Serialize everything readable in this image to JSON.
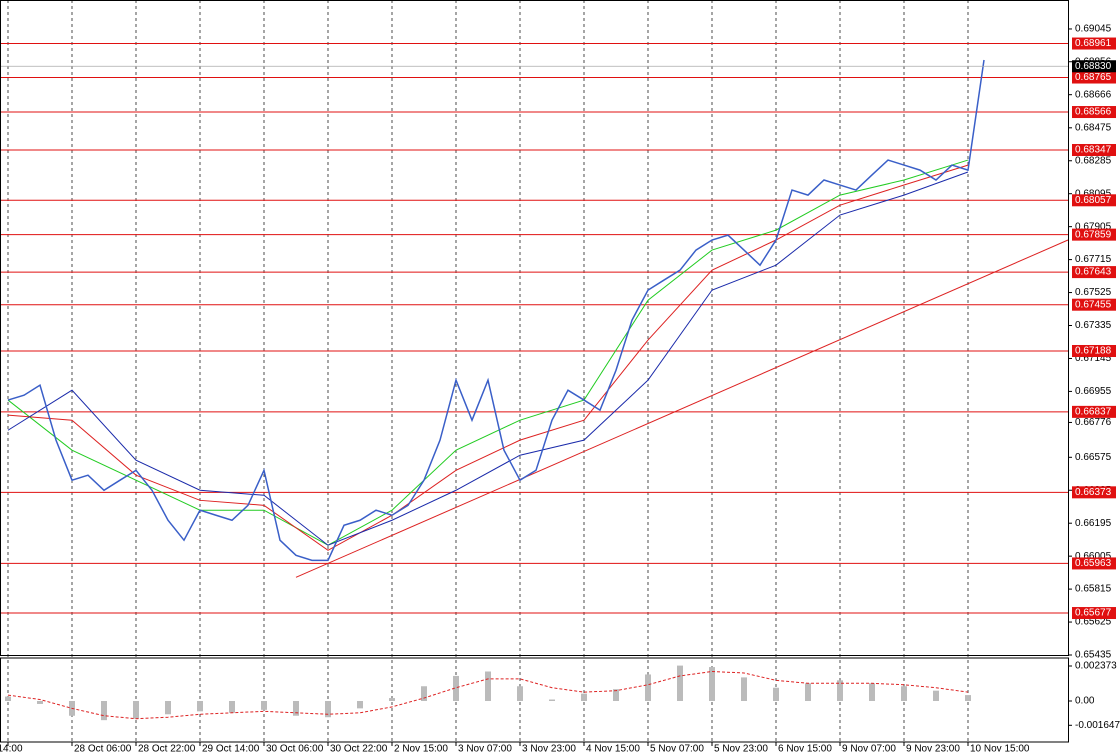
{
  "chart_data": {
    "type": "ohlc-line",
    "xlim": [
      -2,
      265
    ],
    "xticks": [
      {
        "value": 0,
        "label": "14:00"
      },
      {
        "value": 16,
        "label": "28 Oct 06:00"
      },
      {
        "value": 32,
        "label": "28 Oct 22:00"
      },
      {
        "value": 48,
        "label": "29 Oct 14:00"
      },
      {
        "value": 64,
        "label": "30 Oct 06:00"
      },
      {
        "value": 80,
        "label": "30 Oct 22:00"
      },
      {
        "value": 96,
        "label": "2 Nov 15:00"
      },
      {
        "value": 112,
        "label": "3 Nov 07:00"
      },
      {
        "value": 128,
        "label": "3 Nov 23:00"
      },
      {
        "value": 144,
        "label": "4 Nov 15:00"
      },
      {
        "value": 160,
        "label": "5 Nov 07:00"
      },
      {
        "value": 176,
        "label": "5 Nov 23:00"
      },
      {
        "value": 192,
        "label": "6 Nov 15:00"
      },
      {
        "value": 208,
        "label": "9 Nov 07:00"
      },
      {
        "value": 224,
        "label": "9 Nov 23:00"
      },
      {
        "value": 240,
        "label": "10 Nov 15:00"
      }
    ],
    "grid": true,
    "ylim": [
      0.65435,
      0.69212
    ],
    "yticks": [
      0.69045,
      0.68856,
      0.68666,
      0.68475,
      0.68285,
      0.68095,
      0.67905,
      0.67715,
      0.67525,
      0.67335,
      0.67145,
      0.66955,
      0.66776,
      0.66575,
      0.66385,
      0.66195,
      0.66005,
      0.65815,
      0.65625,
      0.65435
    ],
    "price": {
      "name": "close",
      "color": "#3a5fc8",
      "x": [
        0,
        4,
        8,
        12,
        16,
        20,
        24,
        28,
        32,
        36,
        40,
        44,
        48,
        52,
        56,
        60,
        64,
        68,
        72,
        76,
        80,
        84,
        88,
        92,
        96,
        100,
        104,
        108,
        112,
        116,
        120,
        124,
        128,
        132,
        136,
        140,
        144,
        148,
        152,
        156,
        160,
        164,
        168,
        172,
        176,
        180,
        184,
        188,
        192,
        196,
        200,
        204,
        208,
        212,
        216,
        220,
        224,
        228,
        232,
        236,
        240,
        244
      ],
      "values": [
        0.66905,
        0.66933,
        0.66991,
        0.66674,
        0.66443,
        0.66472,
        0.66385,
        0.66443,
        0.665,
        0.66385,
        0.66212,
        0.66097,
        0.6627,
        0.66241,
        0.66212,
        0.66298,
        0.665,
        0.66097,
        0.6601,
        0.65981,
        0.65981,
        0.66183,
        0.66212,
        0.6627,
        0.66241,
        0.66298,
        0.66443,
        0.66674,
        0.6702,
        0.66789,
        0.6702,
        0.66616,
        0.66443,
        0.665,
        0.66789,
        0.66962,
        0.66905,
        0.66847,
        0.67077,
        0.67366,
        0.67539,
        0.67597,
        0.67654,
        0.6777,
        0.67828,
        0.67856,
        0.6777,
        0.67683,
        0.67828,
        0.68116,
        0.68087,
        0.68174,
        0.68145,
        0.68116,
        0.68203,
        0.68289,
        0.6826,
        0.68231,
        0.68174,
        0.6826,
        0.68231,
        0.68866
      ]
    },
    "series": [
      {
        "color": "#22cc22",
        "x": [
          0,
          16,
          32,
          48,
          64,
          80,
          96,
          112,
          128,
          144,
          160,
          176,
          192,
          208,
          224,
          240
        ],
        "values": [
          0.66905,
          0.66616,
          0.66443,
          0.6627,
          0.6627,
          0.66068,
          0.6627,
          0.66616,
          0.66789,
          0.66905,
          0.67481,
          0.6777,
          0.67885,
          0.68087,
          0.68174,
          0.68289
        ]
      },
      {
        "color": "#dd2222",
        "x": [
          0,
          16,
          32,
          48,
          64,
          80,
          96,
          112,
          128,
          144,
          160,
          176,
          192,
          208,
          224,
          240
        ],
        "values": [
          0.66818,
          0.66789,
          0.66472,
          0.66327,
          0.66298,
          0.66039,
          0.66241,
          0.665,
          0.66674,
          0.66789,
          0.67251,
          0.67654,
          0.67828,
          0.68029,
          0.68145,
          0.6826
        ]
      },
      {
        "color": "#1a2aaa",
        "x": [
          0,
          16,
          32,
          48,
          64,
          80,
          96,
          112,
          128,
          144,
          160,
          176,
          192,
          208,
          224,
          240
        ],
        "values": [
          0.66731,
          0.66962,
          0.66558,
          0.66385,
          0.66356,
          0.66068,
          0.66212,
          0.66385,
          0.66587,
          0.66674,
          0.6702,
          0.67539,
          0.67683,
          0.67972,
          0.68087,
          0.6822
        ]
      }
    ],
    "trendline": {
      "color": "#dd2222",
      "x": [
        72,
        265
      ],
      "values": [
        0.65883,
        0.67828
      ]
    },
    "levels": {
      "color": "#e01010",
      "values": [
        0.68961,
        0.68765,
        0.68566,
        0.68347,
        0.68057,
        0.67859,
        0.67643,
        0.67455,
        0.67188,
        0.66837,
        0.66373,
        0.65963,
        0.65677
      ]
    },
    "current_price": {
      "value": 0.6883,
      "label": "0.68830"
    },
    "oscillator": {
      "ylim": [
        -0.00278,
        0.002915
      ],
      "yticks": [
        0.002373,
        {
          "value": 0,
          "label": "0.00"
        },
        -0.001647
      ],
      "x": [
        0,
        8,
        16,
        24,
        32,
        40,
        48,
        56,
        64,
        72,
        80,
        88,
        96,
        104,
        112,
        120,
        128,
        136,
        144,
        152,
        160,
        168,
        176,
        184,
        192,
        200,
        208,
        216,
        224,
        232,
        240
      ],
      "histogram": {
        "color": "#bbbbbb",
        "values": [
          0.0003,
          -0.0002,
          -0.001,
          -0.0013,
          -0.0012,
          -0.0009,
          -0.0007,
          -0.0008,
          -0.0006,
          -0.001,
          -0.0011,
          -0.0005,
          0.0002,
          0.001,
          0.0017,
          0.002,
          0.001,
          0.0001,
          0.0005,
          0.0008,
          0.0018,
          0.0024,
          0.0023,
          0.0016,
          0.0009,
          0.0012,
          0.0014,
          0.0012,
          0.001,
          0.0007,
          0.0004
        ]
      },
      "signal": {
        "color": "#dd2222",
        "values": [
          0.0004,
          0.0001,
          -0.0005,
          -0.001,
          -0.0012,
          -0.0011,
          -0.0009,
          -0.0008,
          -0.0007,
          -0.0008,
          -0.0009,
          -0.0008,
          -0.0004,
          0.0002,
          0.0009,
          0.0015,
          0.0015,
          0.0009,
          0.0006,
          0.0007,
          0.0011,
          0.0017,
          0.002,
          0.0019,
          0.0014,
          0.0012,
          0.0012,
          0.0012,
          0.0011,
          0.0009,
          0.0006
        ]
      }
    }
  }
}
